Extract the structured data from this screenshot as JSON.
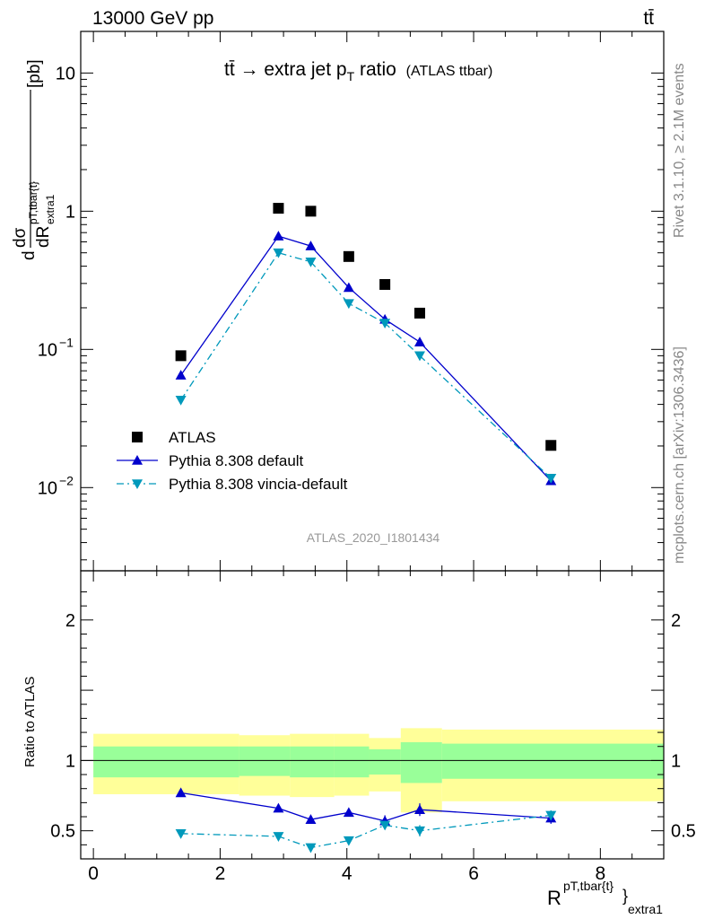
{
  "header": {
    "left": "13000 GeV pp",
    "right": "tt̄"
  },
  "side": {
    "top": "Rivet 3.1.10, ≥ 2.1M events",
    "bottom": "mcplots.cern.ch [arXiv:1306.3436]"
  },
  "chart_data": [
    {
      "type": "line",
      "title": "tt̄ → extra jet p",
      "title_sub": "T",
      "title_tail": " ratio",
      "title_small": "(ATLAS ttbar)",
      "ylabel": "dσ / dR extra1 pT,tbar{t} [pb]",
      "yscale": "log",
      "ylim": [
        0.0025,
        20
      ],
      "xlim": [
        -0.2,
        9
      ],
      "yticks": [
        {
          "value": 10,
          "label": "10"
        },
        {
          "value": 1,
          "label": "1"
        },
        {
          "value": 0.1,
          "label": "10",
          "exp": "−1"
        },
        {
          "value": 0.01,
          "label": "10",
          "exp": "−2"
        }
      ],
      "watermark": "ATLAS_2020_I1801434",
      "series": [
        {
          "name": "ATLAS",
          "color": "#000000",
          "marker": "square",
          "x": [
            1.38,
            2.92,
            3.43,
            4.03,
            4.6,
            5.15,
            7.22
          ],
          "y": [
            0.09,
            1.05,
            1.0,
            0.47,
            0.295,
            0.183,
            0.0202
          ]
        },
        {
          "name": "Pythia 8.308 default",
          "color": "#0000cc",
          "marker": "triangle-up",
          "dash": "solid",
          "x": [
            1.38,
            2.92,
            3.43,
            4.03,
            4.6,
            5.15,
            7.22
          ],
          "y": [
            0.065,
            0.66,
            0.56,
            0.28,
            0.165,
            0.113,
            0.0112
          ]
        },
        {
          "name": "Pythia 8.308 vincia-default",
          "color": "#0099bb",
          "marker": "triangle-down",
          "dash": "dashdot",
          "x": [
            1.38,
            2.92,
            3.43,
            4.03,
            4.6,
            5.15,
            7.22
          ],
          "y": [
            0.043,
            0.5,
            0.43,
            0.215,
            0.155,
            0.09,
            0.0117
          ]
        }
      ]
    },
    {
      "type": "line",
      "ylabel": "Ratio to ATLAS",
      "xlabel": "R",
      "xlabel_sup": "pT,tbar{t}",
      "xlabel_sub": "extra1",
      "ylim": [
        0.3,
        2.35
      ],
      "xlim": [
        -0.2,
        9
      ],
      "xticks": [
        0,
        2,
        4,
        6,
        8
      ],
      "yticks": [
        0.5,
        1,
        2
      ],
      "bins": [
        {
          "x0": 0.0,
          "x1": 2.3,
          "yellow": [
            0.76,
            1.19
          ],
          "green": [
            0.88,
            1.1
          ]
        },
        {
          "x0": 2.3,
          "x1": 3.1,
          "yellow": [
            0.75,
            1.18
          ],
          "green": [
            0.89,
            1.1
          ]
        },
        {
          "x0": 3.1,
          "x1": 3.8,
          "yellow": [
            0.74,
            1.19
          ],
          "green": [
            0.88,
            1.1
          ]
        },
        {
          "x0": 3.8,
          "x1": 4.35,
          "yellow": [
            0.75,
            1.19
          ],
          "green": [
            0.88,
            1.1
          ]
        },
        {
          "x0": 4.35,
          "x1": 4.85,
          "yellow": [
            0.78,
            1.16
          ],
          "green": [
            0.9,
            1.08
          ]
        },
        {
          "x0": 4.85,
          "x1": 5.5,
          "yellow": [
            0.63,
            1.23
          ],
          "green": [
            0.84,
            1.13
          ]
        },
        {
          "x0": 5.5,
          "x1": 9.0,
          "yellow": [
            0.71,
            1.22
          ],
          "green": [
            0.87,
            1.12
          ]
        }
      ],
      "series": [
        {
          "name": "Pythia 8.308 default",
          "color": "#0000cc",
          "marker": "triangle-up",
          "dash": "solid",
          "x": [
            1.38,
            2.92,
            3.43,
            4.03,
            4.6,
            5.15,
            7.22
          ],
          "y": [
            0.77,
            0.66,
            0.58,
            0.63,
            0.57,
            0.65,
            0.59
          ],
          "err": [
            0.025,
            0.02,
            0.018,
            0.025,
            0.04,
            0.045,
            0.04
          ]
        },
        {
          "name": "Pythia 8.308 vincia-default",
          "color": "#0099bb",
          "marker": "triangle-down",
          "dash": "dashdot",
          "x": [
            1.38,
            2.92,
            3.43,
            4.03,
            4.6,
            5.15,
            7.22
          ],
          "y": [
            0.48,
            0.46,
            0.38,
            0.43,
            0.54,
            0.5,
            0.61
          ],
          "err": [
            0.02,
            0.018,
            0.015,
            0.02,
            0.03,
            0.04,
            0.035
          ]
        }
      ]
    }
  ]
}
